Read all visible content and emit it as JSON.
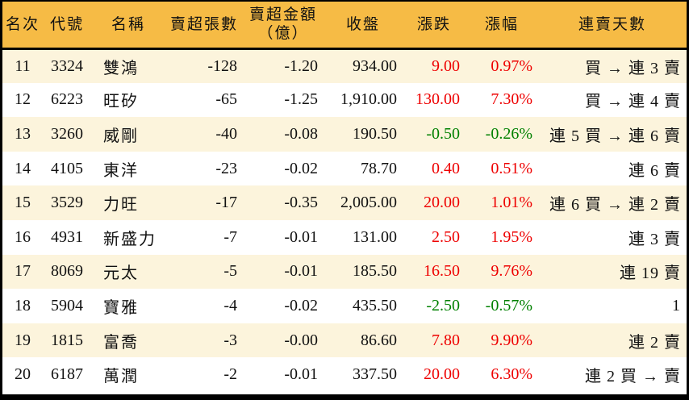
{
  "colors": {
    "header_bg": "#F6BB45",
    "row_alt_bg": "#FCF4DC",
    "row_bg": "#FFFFFF",
    "up_red": "#EE0000",
    "down_green": "#008000",
    "border": "#000000"
  },
  "chart_data": {
    "type": "table",
    "header": {
      "rank": "名次",
      "code": "代號",
      "name": "名稱",
      "volume": "賣超張數",
      "amount_line1": "賣超金額",
      "amount_line2": "（億）",
      "close": "收盤",
      "change": "漲跌",
      "change_pct": "漲幅",
      "streak": "連賣天數"
    },
    "rows": [
      {
        "rank": "11",
        "code": "3324",
        "name": "雙鴻",
        "volume": "-128",
        "amount": "-1.20",
        "close": "934.00",
        "change": "9.00",
        "change_pct": "0.97%",
        "direction": "up",
        "streak": "買 → 連 3 賣"
      },
      {
        "rank": "12",
        "code": "6223",
        "name": "旺矽",
        "volume": "-65",
        "amount": "-1.25",
        "close": "1,910.00",
        "change": "130.00",
        "change_pct": "7.30%",
        "direction": "up",
        "streak": "買 → 連 4 賣"
      },
      {
        "rank": "13",
        "code": "3260",
        "name": "威剛",
        "volume": "-40",
        "amount": "-0.08",
        "close": "190.50",
        "change": "-0.50",
        "change_pct": "-0.26%",
        "direction": "down",
        "streak": "連 5 買 → 連 6 賣"
      },
      {
        "rank": "14",
        "code": "4105",
        "name": "東洋",
        "volume": "-23",
        "amount": "-0.02",
        "close": "78.70",
        "change": "0.40",
        "change_pct": "0.51%",
        "direction": "up",
        "streak": "連 6 賣"
      },
      {
        "rank": "15",
        "code": "3529",
        "name": "力旺",
        "volume": "-17",
        "amount": "-0.35",
        "close": "2,005.00",
        "change": "20.00",
        "change_pct": "1.01%",
        "direction": "up",
        "streak": "連 6 買 → 連 2 賣"
      },
      {
        "rank": "16",
        "code": "4931",
        "name": "新盛力",
        "volume": "-7",
        "amount": "-0.01",
        "close": "131.00",
        "change": "2.50",
        "change_pct": "1.95%",
        "direction": "up",
        "streak": "連 3 賣"
      },
      {
        "rank": "17",
        "code": "8069",
        "name": "元太",
        "volume": "-5",
        "amount": "-0.01",
        "close": "185.50",
        "change": "16.50",
        "change_pct": "9.76%",
        "direction": "up",
        "streak": "連 19 賣"
      },
      {
        "rank": "18",
        "code": "5904",
        "name": "寶雅",
        "volume": "-4",
        "amount": "-0.02",
        "close": "435.50",
        "change": "-2.50",
        "change_pct": "-0.57%",
        "direction": "down",
        "streak": "1"
      },
      {
        "rank": "19",
        "code": "1815",
        "name": "富喬",
        "volume": "-3",
        "amount": "-0.00",
        "close": "86.60",
        "change": "7.80",
        "change_pct": "9.90%",
        "direction": "up",
        "streak": "連 2 賣"
      },
      {
        "rank": "20",
        "code": "6187",
        "name": "萬潤",
        "volume": "-2",
        "amount": "-0.01",
        "close": "337.50",
        "change": "20.00",
        "change_pct": "6.30%",
        "direction": "up",
        "streak": "連 2 買 → 賣"
      }
    ]
  }
}
